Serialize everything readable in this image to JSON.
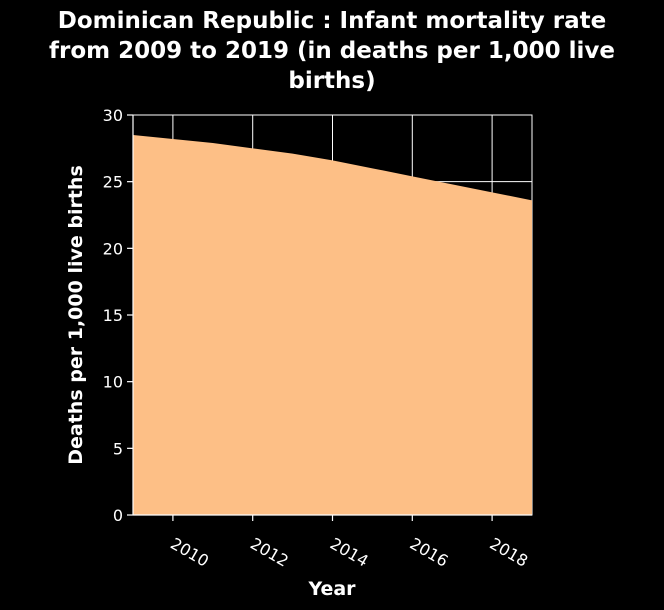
{
  "chart_data": {
    "type": "area",
    "title_lines": [
      "Dominican Republic : Infant mortality rate",
      "from 2009 to 2019 (in deaths per 1,000 live",
      "births)"
    ],
    "xlabel": "Year",
    "ylabel": "Deaths per 1,000 live births",
    "x": [
      2009,
      2010,
      2011,
      2012,
      2013,
      2014,
      2015,
      2016,
      2017,
      2018,
      2019
    ],
    "values": [
      28.5,
      28.2,
      27.9,
      27.5,
      27.1,
      26.6,
      26.0,
      25.4,
      24.8,
      24.2,
      23.6
    ],
    "xlim": [
      2009,
      2019
    ],
    "ylim": [
      0,
      30
    ],
    "xticks": [
      "2010",
      "2012",
      "2014",
      "2016",
      "2018"
    ],
    "yticks": [
      "0",
      "5",
      "10",
      "15",
      "20",
      "25",
      "30"
    ],
    "grid": true,
    "fill_color": "#fdbf86",
    "background_color": "#000000"
  }
}
